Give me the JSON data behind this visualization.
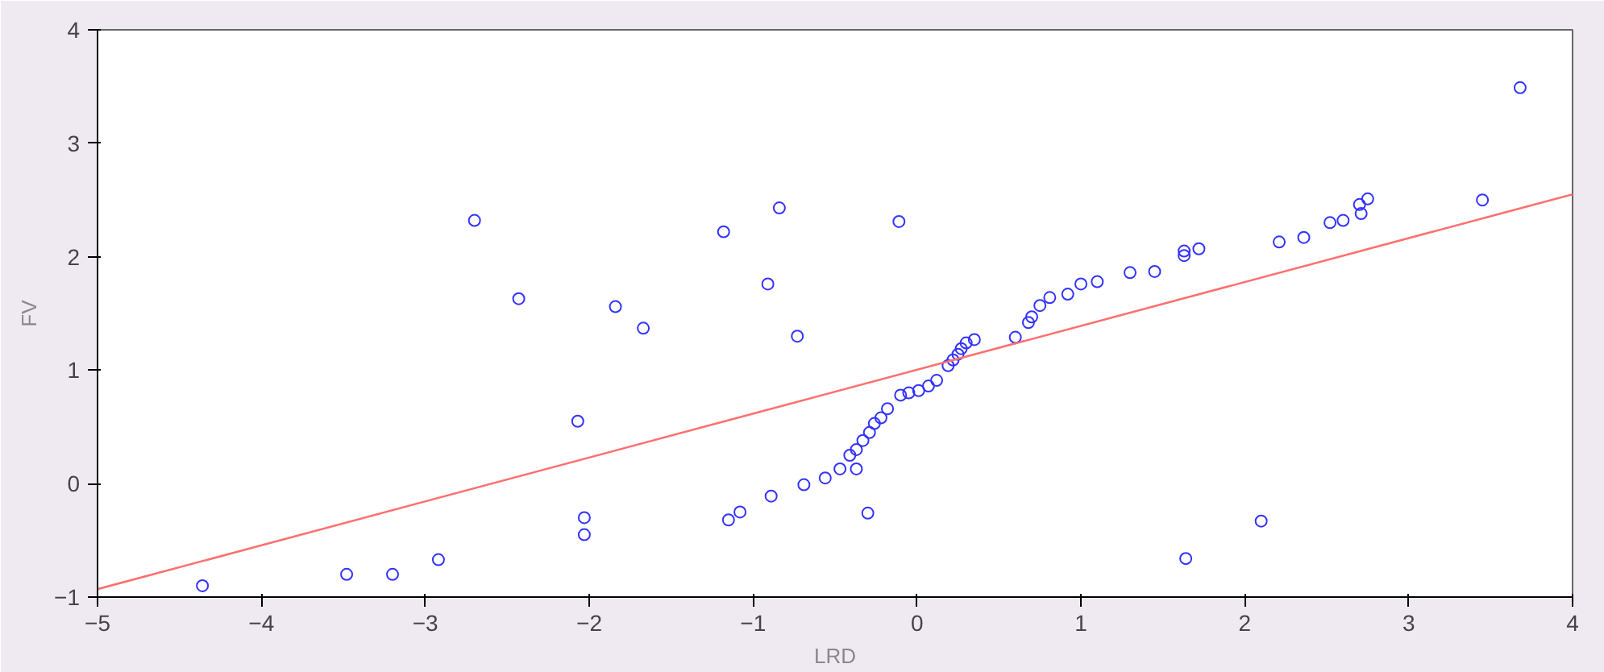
{
  "chart_data": {
    "type": "scatter",
    "xlabel": "LRD",
    "ylabel": "FV",
    "xlim": [
      -5,
      4
    ],
    "ylim": [
      -1,
      4
    ],
    "xticks": [
      -5,
      -4,
      -3,
      -2,
      -1,
      0,
      1,
      2,
      3,
      4
    ],
    "yticks": [
      -1,
      0,
      1,
      2,
      3,
      4
    ],
    "grid": false,
    "marker": "circle",
    "series": [
      {
        "color": "#3333ff",
        "x": [
          -4.36,
          -3.48,
          -3.2,
          -2.92,
          -2.7,
          -2.43,
          -1.84,
          -1.67,
          -2.07,
          -2.03,
          -2.03,
          -1.18,
          -0.84,
          -0.91,
          -0.73,
          -1.15,
          -1.08,
          -0.89,
          -0.69,
          -0.56,
          -0.47,
          3.68,
          3.45,
          2.75,
          2.7,
          2.71,
          2.6,
          2.52,
          2.36,
          2.21,
          1.72,
          1.63,
          1.63,
          1.45,
          1.3,
          1.1,
          1.0,
          0.92,
          0.81,
          0.75,
          0.7,
          0.68,
          0.6,
          0.35,
          0.3,
          0.27,
          0.25,
          0.22,
          0.19,
          0.12,
          0.07,
          0.01,
          -0.05,
          -0.1,
          -0.18,
          -0.22,
          -0.26,
          -0.29,
          -0.33,
          -0.37,
          -0.41,
          -0.37,
          -0.3,
          -0.11,
          2.1,
          1.64
        ],
        "values": [
          -0.9,
          -0.8,
          -0.8,
          -0.67,
          2.32,
          1.63,
          1.56,
          1.37,
          0.55,
          -0.3,
          -0.45,
          2.22,
          2.43,
          1.76,
          1.3,
          -0.32,
          -0.25,
          -0.11,
          -0.01,
          0.05,
          0.13,
          3.49,
          2.5,
          2.51,
          2.46,
          2.38,
          2.32,
          2.3,
          2.17,
          2.13,
          2.07,
          2.01,
          2.05,
          1.87,
          1.86,
          1.78,
          1.76,
          1.67,
          1.64,
          1.57,
          1.47,
          1.42,
          1.29,
          1.27,
          1.24,
          1.19,
          1.14,
          1.09,
          1.04,
          0.91,
          0.86,
          0.82,
          0.8,
          0.78,
          0.66,
          0.58,
          0.53,
          0.45,
          0.38,
          0.3,
          0.25,
          0.13,
          -0.26,
          2.31,
          -0.33,
          -0.66
        ]
      },
      {
        "type": "line",
        "color": "#ff6f6f",
        "x": [
          -5,
          4
        ],
        "values": [
          -0.93,
          2.55
        ],
        "marker": "none"
      }
    ]
  }
}
